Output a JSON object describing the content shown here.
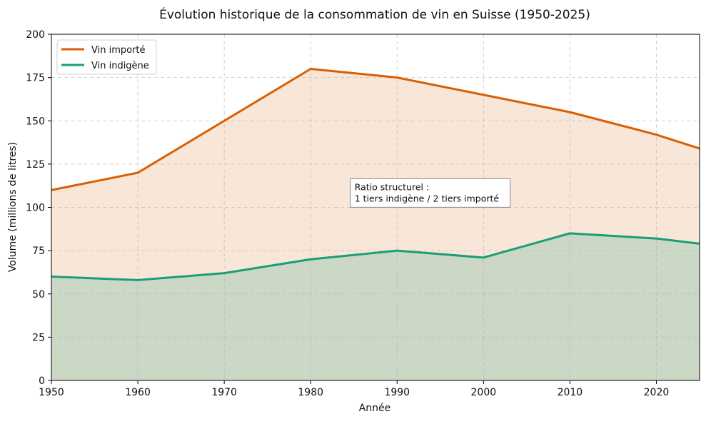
{
  "chart_data": {
    "type": "area",
    "title": "Évolution historique de la consommation de vin en Suisse (1950-2025)",
    "xlabel": "Année",
    "ylabel": "Volume (millions de litres)",
    "x": [
      1950,
      1960,
      1970,
      1980,
      1990,
      2000,
      2010,
      2020,
      2025
    ],
    "xlim": [
      1950,
      2025
    ],
    "ylim": [
      0,
      200
    ],
    "xticks": [
      1950,
      1960,
      1970,
      1980,
      1990,
      2000,
      2010,
      2020
    ],
    "yticks": [
      0,
      25,
      50,
      75,
      100,
      125,
      150,
      175,
      200
    ],
    "grid": true,
    "legend_position": "top-left",
    "series": [
      {
        "name": "Vin importé",
        "color": "#d95f02",
        "fill": "#f8e6d9",
        "values": [
          110,
          120,
          150,
          180,
          175,
          165,
          155,
          142,
          134
        ]
      },
      {
        "name": "Vin indigène",
        "color": "#1b9e77",
        "fill": "#cbd8c6",
        "values": [
          60,
          58,
          62,
          70,
          75,
          71,
          85,
          82,
          79
        ]
      }
    ],
    "annotation": {
      "lines": [
        "Ratio structurel :",
        "1 tiers indigène / 2 tiers importé"
      ],
      "x": 1985,
      "y": 105
    }
  }
}
